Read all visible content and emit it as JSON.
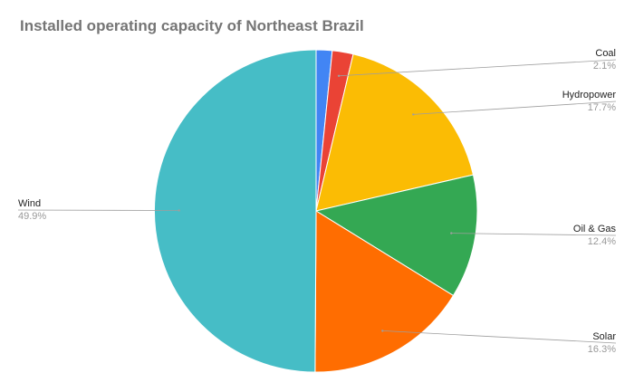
{
  "chart_data": {
    "type": "pie",
    "title": "Installed operating capacity of Northeast Brazil",
    "slices": [
      {
        "name": "",
        "value": 1.6,
        "label": "",
        "color": "#4285F4"
      },
      {
        "name": "Coal",
        "value": 2.1,
        "label": "2.1%",
        "color": "#EA4335"
      },
      {
        "name": "Hydropower",
        "value": 17.7,
        "label": "17.7%",
        "color": "#FBBC04"
      },
      {
        "name": "Oil & Gas",
        "value": 12.4,
        "label": "12.4%",
        "color": "#34A853"
      },
      {
        "name": "Solar",
        "value": 16.3,
        "label": "16.3%",
        "color": "#FF6D01"
      },
      {
        "name": "Wind",
        "value": 49.9,
        "label": "49.9%",
        "color": "#46BDC6"
      }
    ],
    "legend": "none",
    "labels": "outside with leader lines"
  }
}
